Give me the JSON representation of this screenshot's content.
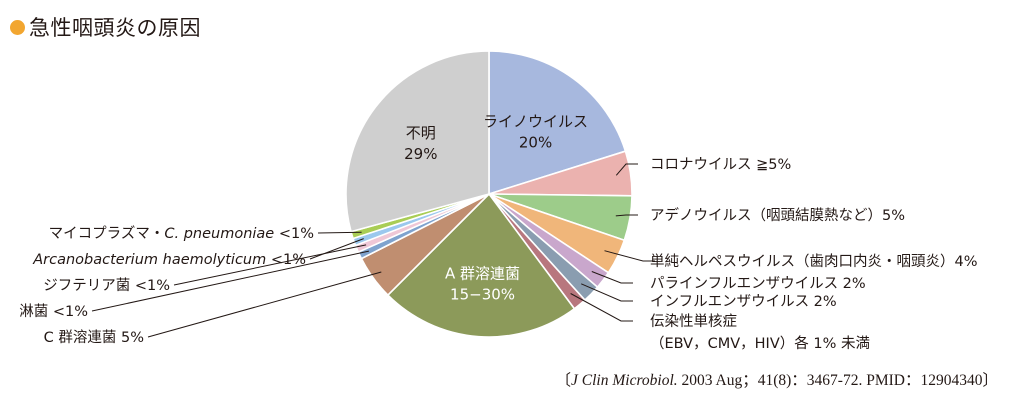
{
  "title": "急性咽頭炎の原因",
  "title_marker_color": "#F2A630",
  "chart_data": {
    "type": "pie",
    "unit": "%",
    "start": "12 o'clock",
    "direction": "clockwise",
    "slices": [
      {
        "label": "ライノウイルス",
        "value": 20,
        "value_label": "20%",
        "color": "#A7B8DE"
      },
      {
        "label": "コロナウイルス ≧5%",
        "value": 5,
        "color": "#EBB2AF"
      },
      {
        "label": "アデノウイルス（咽頭結膜熱など）5%",
        "value": 5,
        "color": "#9DCC8A"
      },
      {
        "label": "単純ヘルペスウイルス（歯肉口内炎・咽頭炎）4%",
        "value": 4,
        "color": "#F0B67A"
      },
      {
        "label": "パラインフルエンザウイルス 2%",
        "value": 2,
        "color": "#C9A7CC"
      },
      {
        "label": "インフルエンザウイルス 2%",
        "value": 2,
        "color": "#8A9DB0"
      },
      {
        "label_line1": "伝染性単核症",
        "label_line2": "（EBV，CMV，HIV）各 1% 未満",
        "value": 1.5,
        "color": "#B8777E"
      },
      {
        "label": "A 群溶連菌",
        "value_label": "15−30%",
        "value": 22.5,
        "color": "#8C9A5A"
      },
      {
        "label": "C 群溶連菌 5%",
        "value": 5,
        "color": "#C08E70"
      },
      {
        "label": "淋菌 <1%",
        "value": 0.8,
        "color": "#7FA3CE"
      },
      {
        "label": "ジフテリア菌 <1%",
        "value": 0.8,
        "color": "#EEC7D6"
      },
      {
        "label_italic": "Arcanobacterium haemolyticum",
        "label_suffix": " <1%",
        "value": 0.8,
        "color": "#9BC8EE"
      },
      {
        "label_prefix": "マイコプラズマ・",
        "label_italic": "C. pneumoniae",
        "label_suffix": " <1%",
        "value": 0.8,
        "color": "#A9CD55"
      },
      {
        "label": "不明",
        "value": 29,
        "value_label": "29%",
        "color": "#CFCFCF"
      }
    ]
  },
  "source": {
    "open": "〔",
    "journal": "J Clin Microbiol.",
    "rest": " 2003 Aug；41(8)：3467-72. PMID：12904340",
    "close": "〕"
  }
}
